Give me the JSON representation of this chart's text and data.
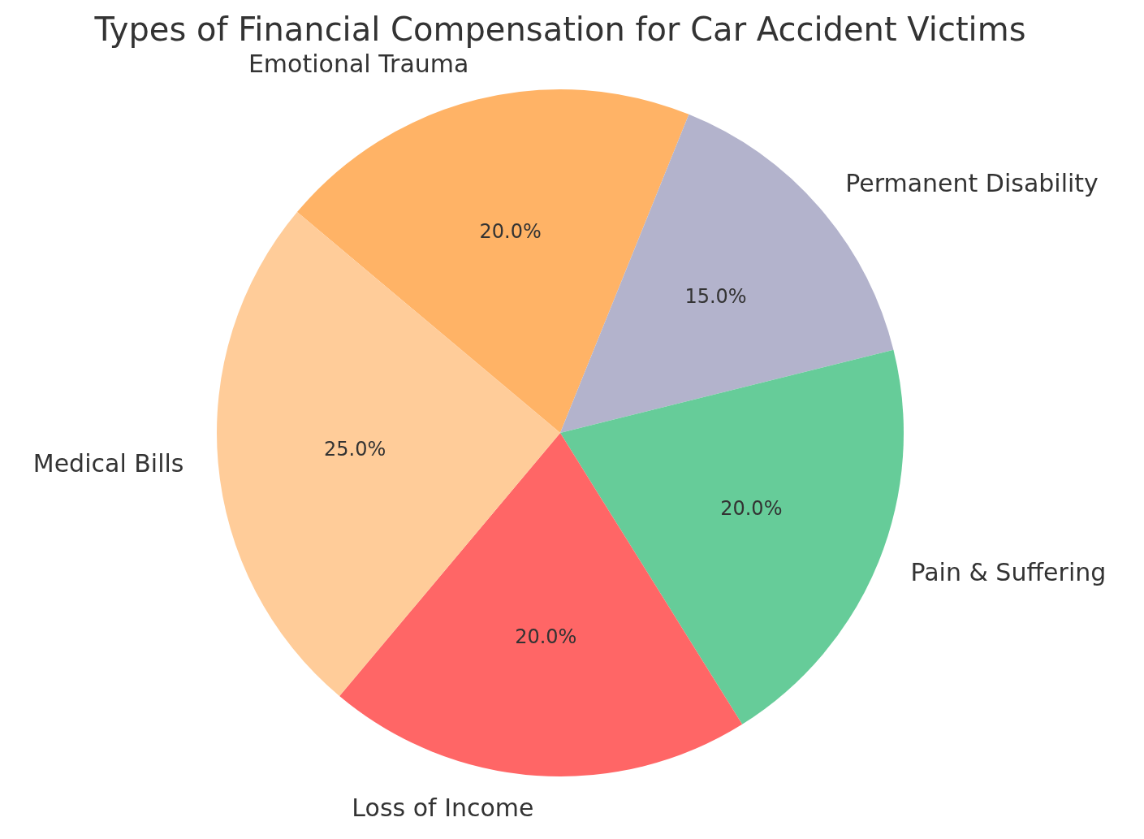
{
  "chart_data": {
    "type": "pie",
    "title": "Types of Financial Compensation for Car Accident Victims",
    "categories": [
      "Emotional Trauma",
      "Permanent Disability",
      "Pain & Suffering",
      "Loss of Income",
      "Medical Bills"
    ],
    "values": [
      20,
      15,
      20,
      20,
      25
    ],
    "colors": [
      "#ffb366",
      "#b3b3cc",
      "#66cc99",
      "#ff6666",
      "#ffcc99"
    ],
    "value_labels": [
      "20.0%",
      "15.0%",
      "20.0%",
      "20.0%",
      "25.0%"
    ],
    "legend": false
  }
}
